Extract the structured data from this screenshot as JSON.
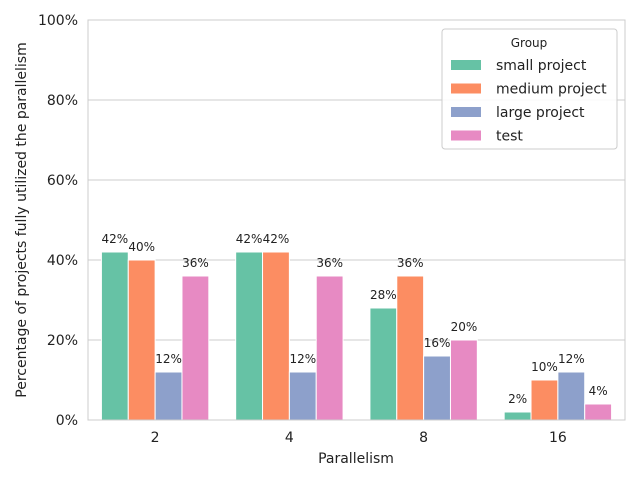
{
  "chart_data": {
    "type": "bar",
    "xlabel": "Parallelism",
    "ylabel": "Percentage of projects fully utilized the parallelism",
    "categories": [
      "2",
      "4",
      "8",
      "16"
    ],
    "ylim": [
      0,
      100
    ],
    "yticks": [
      "0%",
      "20%",
      "40%",
      "60%",
      "80%",
      "100%"
    ],
    "grid": true,
    "legend": {
      "title": "Group",
      "placement": "top-right"
    },
    "series": [
      {
        "name": "small project",
        "color": "#66c2a5",
        "values": [
          42,
          42,
          28,
          2
        ],
        "labels": [
          "42%",
          "42%",
          "28%",
          "2%"
        ]
      },
      {
        "name": "medium project",
        "color": "#fc8d62",
        "values": [
          40,
          42,
          36,
          10
        ],
        "labels": [
          "40%",
          "42%",
          "36%",
          "10%"
        ]
      },
      {
        "name": "large project",
        "color": "#8da0cb",
        "values": [
          12,
          12,
          16,
          12
        ],
        "labels": [
          "12%",
          "12%",
          "16%",
          "12%"
        ]
      },
      {
        "name": "test",
        "color": "#e78ac3",
        "values": [
          36,
          36,
          20,
          4
        ],
        "labels": [
          "36%",
          "36%",
          "20%",
          "4%"
        ]
      }
    ]
  }
}
